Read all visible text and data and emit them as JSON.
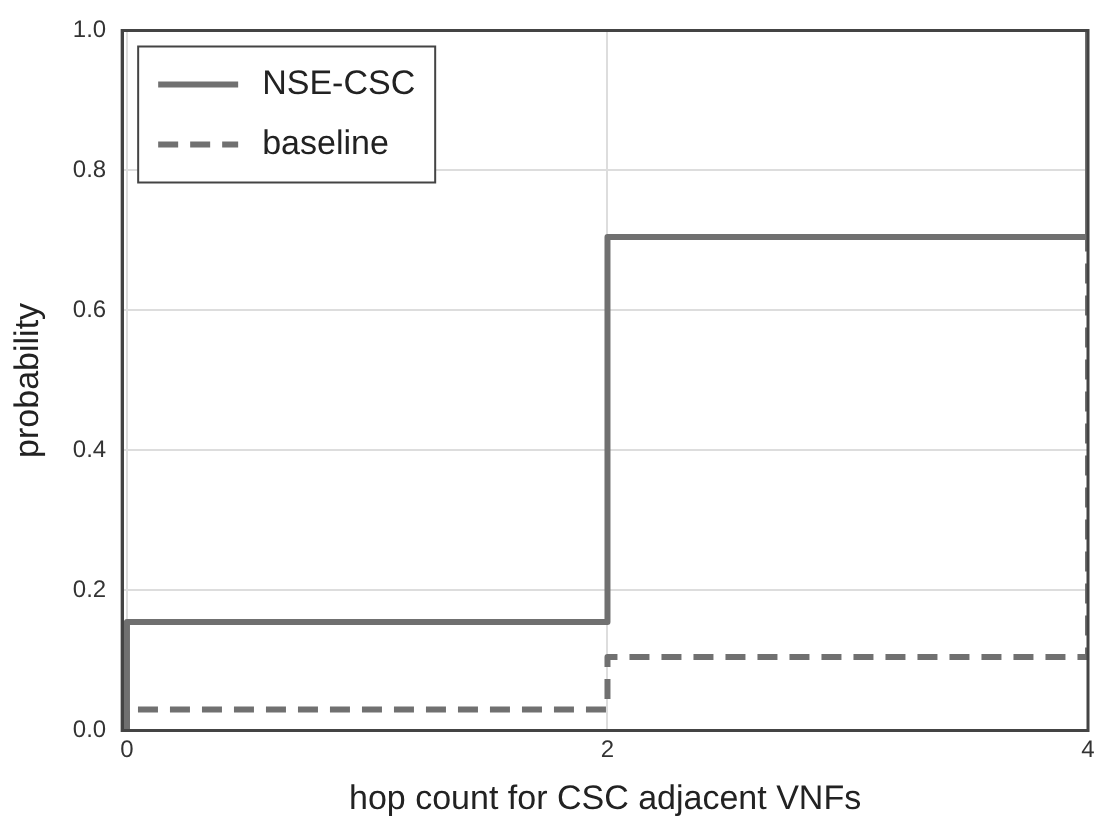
{
  "chart_data": {
    "type": "step",
    "xlabel": "hop count for CSC adjacent VNFs",
    "ylabel": "probability",
    "x": [
      0,
      0,
      2,
      4
    ],
    "series": [
      {
        "name": "NSE-CSC",
        "color": "#707070",
        "line_style": "solid",
        "values": [
          0,
          0.155,
          0.705,
          1.0
        ]
      },
      {
        "name": "baseline",
        "color": "#707070",
        "line_style": "dashed",
        "values": [
          0,
          0.03,
          0.105,
          1.0
        ]
      }
    ],
    "xlim": [
      -0.02,
      4
    ],
    "xticks": [
      0,
      2,
      4
    ],
    "ylim": [
      0,
      1
    ],
    "yticks": [
      {
        "value": 0,
        "label": "0.0"
      },
      {
        "value": 0.2,
        "label": "0.2"
      },
      {
        "value": 0.4,
        "label": "0.4"
      },
      {
        "value": 0.6,
        "label": "0.6"
      },
      {
        "value": 0.8,
        "label": "0.8"
      },
      {
        "value": 1,
        "label": "1.0"
      }
    ],
    "grid": true,
    "legend": "top left",
    "marker": "none"
  }
}
